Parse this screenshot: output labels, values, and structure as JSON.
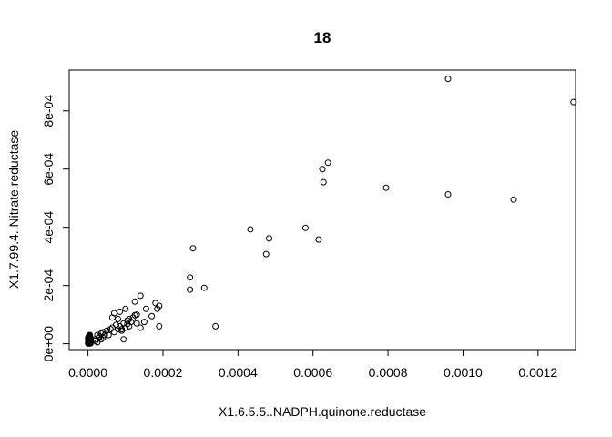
{
  "chart_data": {
    "type": "scatter",
    "title": "18",
    "xlabel": "X1.6.5.5..NADPH.quinone.reductase",
    "ylabel": "X1.7.99.4..Nitrate.reductase",
    "xlim": [
      -5e-05,
      0.0013
    ],
    "ylim": [
      -2e-05,
      0.00094
    ],
    "x_ticks": [
      "0.0000",
      "0.0002",
      "0.0004",
      "0.0006",
      "0.0008",
      "0.0010",
      "0.0012"
    ],
    "x_tick_values": [
      0,
      0.0002,
      0.0004,
      0.0006,
      0.0008,
      0.001,
      0.0012
    ],
    "y_ticks": [
      "0e+00",
      "2e-04",
      "4e-04",
      "6e-04",
      "8e-04"
    ],
    "y_tick_values": [
      0,
      0.0002,
      0.0004,
      0.0006,
      0.0008
    ],
    "grid": false,
    "legend": "none",
    "point_style": "open-circle",
    "x": [
      5e-07,
      1e-06,
      1.5e-06,
      2e-06,
      2.5e-06,
      3e-06,
      3.5e-06,
      4e-06,
      4.5e-06,
      5e-06,
      5.5e-06,
      6e-06,
      6.5e-06,
      7e-06,
      5e-07,
      1e-06,
      1.5e-06,
      2e-06,
      2.5e-06,
      3e-06,
      3.5e-06,
      4e-06,
      4.5e-06,
      5e-06,
      5.5e-06,
      6e-06,
      6.5e-06,
      7e-06,
      5e-07,
      1e-06,
      1.5e-06,
      2e-06,
      2.5e-06,
      3e-06,
      3.5e-06,
      4e-06,
      4.5e-06,
      5e-06,
      5.5e-06,
      6e-06,
      6.5e-06,
      7e-06,
      5e-07,
      1e-06,
      1.5e-06,
      2e-06,
      2.5e-06,
      3e-06,
      3.5e-06,
      4e-06,
      4.5e-06,
      5e-06,
      5.5e-06,
      6e-06,
      6.5e-06,
      7e-06,
      5e-07,
      1e-06,
      1.5e-06,
      2e-06,
      2.5e-06,
      3e-06,
      3.5e-06,
      4e-06,
      4.5e-06,
      5e-06,
      5.5e-06,
      6e-06,
      6.5e-06,
      7e-06,
      2e-05,
      2.5e-05,
      3e-05,
      3.5e-05,
      4e-05,
      4.5e-05,
      2e-05,
      2.5e-05,
      3e-05,
      3.5e-05,
      4e-05,
      5e-05,
      5.5e-05,
      6e-05,
      6.5e-05,
      7e-05,
      7.5e-05,
      8e-05,
      8.5e-05,
      9e-05,
      9.5e-05,
      0.0001,
      0.000105,
      0.00011,
      0.000115,
      0.00012,
      0.00013,
      0.00014,
      0.00015,
      0.00017,
      0.000185,
      0.00019,
      8.5e-05,
      9e-05,
      0.0001,
      0.00011,
      0.000125,
      0.000125,
      0.00013,
      0.00014,
      0.000155,
      0.00018,
      0.00019,
      6.5e-05,
      7e-05,
      8e-05,
      9.5e-05,
      0.000105,
      0.000272,
      0.000272,
      0.00028,
      0.00031,
      0.00034,
      0.000433,
      0.000475,
      0.000483,
      0.00058,
      0.000615,
      0.000625,
      0.000628,
      0.00064,
      0.000795,
      0.00096,
      0.00096,
      0.001135,
      0.0012945
    ],
    "y": [
      2e-06,
      1e-06,
      5e-06,
      3e-06,
      1e-05,
      2e-06,
      6e-06,
      1e-06,
      4e-06,
      1.2e-05,
      3e-06,
      8e-06,
      2e-06,
      5e-06,
      1.5e-05,
      2e-05,
      1.8e-05,
      2.5e-05,
      1.2e-05,
      2.2e-05,
      1e-05,
      2.8e-05,
      1.6e-05,
      3e-05,
      1.4e-05,
      2.1e-05,
      9e-06,
      1.7e-05,
      6e-06,
      3e-06,
      9e-06,
      4e-06,
      7e-06,
      1.1e-05,
      2e-06,
      1.3e-05,
      5e-06,
      8e-06,
      4e-06,
      1e-05,
      6e-06,
      3e-06,
      2e-05,
      1.5e-05,
      1.9e-05,
      2.3e-05,
      1.7e-05,
      1.4e-05,
      2.6e-05,
      1.2e-05,
      1.8e-05,
      2.4e-05,
      1.6e-05,
      1.3e-05,
      2e-05,
      1.1e-05,
      1e-06,
      4e-06,
      2e-06,
      7e-06,
      3e-06,
      5e-06,
      1e-06,
      6e-06,
      2e-06,
      4e-06,
      3e-06,
      1e-06,
      5e-06,
      2e-06,
      1.5e-05,
      3e-05,
      2e-05,
      3.5e-05,
      2e-05,
      3e-05,
      1e-05,
      5e-06,
      2.5e-05,
      1.5e-05,
      4e-05,
      4.5e-05,
      3e-05,
      5e-05,
      5.5e-05,
      4e-05,
      6.5e-05,
      5e-05,
      6e-05,
      4.5e-05,
      7e-05,
      5.5e-05,
      8e-05,
      6e-05,
      7.5e-05,
      9e-05,
      0.0001,
      5.5e-05,
      7.5e-05,
      9.5e-05,
      0.00012,
      0.00013,
      0.00011,
      5e-05,
      0.00012,
      8.5e-05,
      9.8e-05,
      0.000145,
      7e-05,
      0.000165,
      0.00012,
      0.00014,
      6e-05,
      9e-05,
      0.000105,
      8.5e-05,
      1.5e-05,
      6.8e-05,
      0.000186,
      0.000228,
      0.000328,
      0.000192,
      6e-05,
      0.000393,
      0.000308,
      0.000362,
      0.000398,
      0.000358,
      0.0006,
      0.000555,
      0.000622,
      0.000536,
      0.00091,
      0.000513,
      0.000495,
      0.00083
    ]
  }
}
